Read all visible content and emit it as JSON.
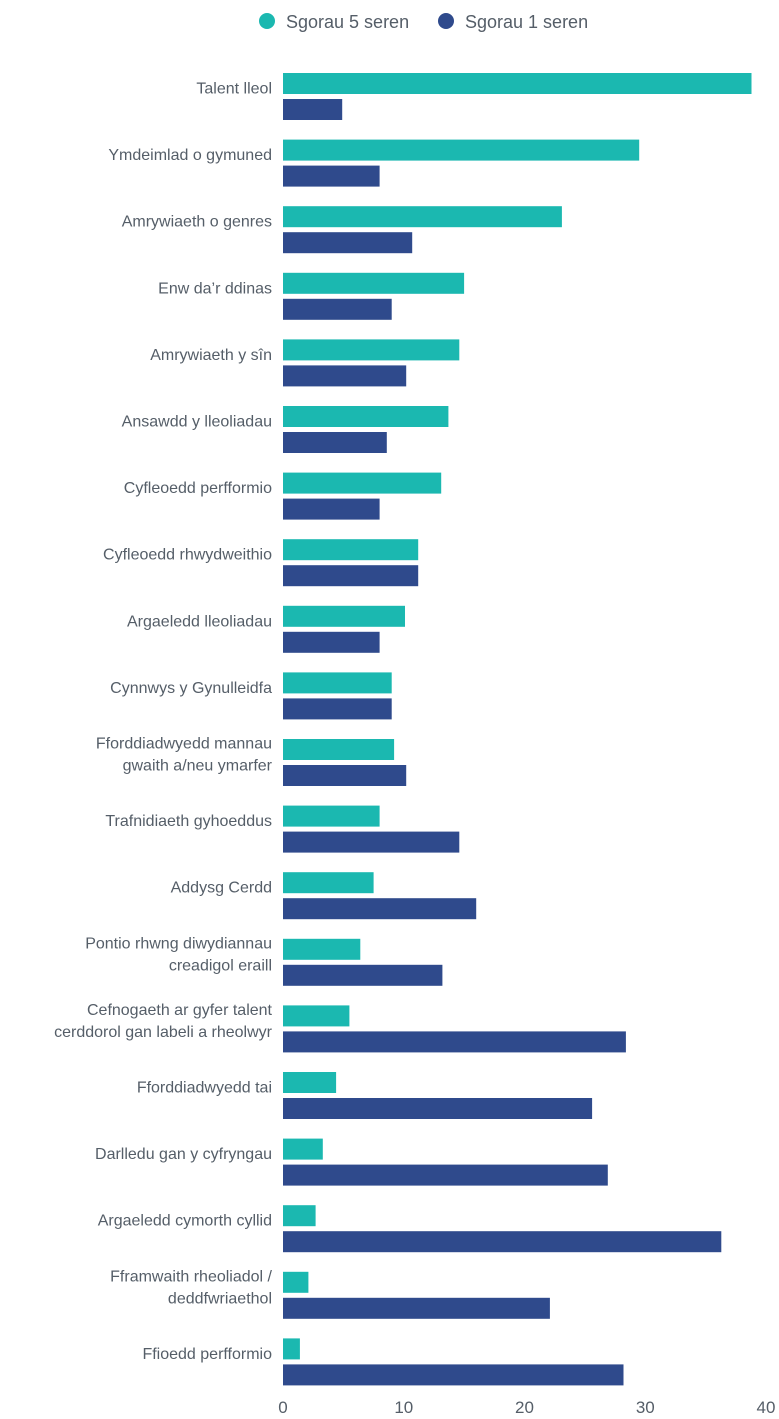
{
  "chart_data": {
    "type": "bar",
    "orientation": "horizontal",
    "categories": [
      [
        "Talent lleol"
      ],
      [
        "Ymdeimlad o gymuned"
      ],
      [
        "Amrywiaeth o genres"
      ],
      [
        "Enw da’r ddinas"
      ],
      [
        "Amrywiaeth y sîn"
      ],
      [
        "Ansawdd y lleoliadau"
      ],
      [
        "Cyfleoedd perfformio"
      ],
      [
        "Cyfleoedd rhwydweithio"
      ],
      [
        "Argaeledd lleoliadau"
      ],
      [
        "Cynnwys y Gynulleidfa"
      ],
      [
        "Fforddiadwyedd mannau",
        "gwaith a/neu ymarfer"
      ],
      [
        "Trafnidiaeth gyhoeddus"
      ],
      [
        "Addysg Cerdd"
      ],
      [
        "Pontio rhwng diwydiannau",
        "creadigol eraill"
      ],
      [
        "Cefnogaeth ar gyfer talent",
        "cerddorol gan labeli a rheolwyr"
      ],
      [
        "Fforddiadwyedd tai"
      ],
      [
        "Darlledu gan y cyfryngau"
      ],
      [
        "Argaeledd cymorth cyllid"
      ],
      [
        "Fframwaith rheoliadol /",
        "deddfwriaethol"
      ],
      [
        "Ffioedd perfformio"
      ]
    ],
    "series": [
      {
        "name": "Sgorau 5 seren",
        "color": "#1bb8b0",
        "values": [
          38.8,
          29.5,
          23.1,
          15.0,
          14.6,
          13.7,
          13.1,
          11.2,
          10.1,
          9.0,
          9.2,
          8.0,
          7.5,
          6.4,
          5.5,
          4.4,
          3.3,
          2.7,
          2.1,
          1.4
        ]
      },
      {
        "name": "Sgorau 1 seren",
        "color": "#2f4a8c",
        "values": [
          4.9,
          8.0,
          10.7,
          9.0,
          10.2,
          8.6,
          8.0,
          11.2,
          8.0,
          9.0,
          10.2,
          14.6,
          16.0,
          13.2,
          28.4,
          25.6,
          26.9,
          36.3,
          22.1,
          28.2
        ]
      }
    ],
    "xlim": [
      0,
      40
    ],
    "xticks": [
      "0",
      "10",
      "20",
      "30",
      "40"
    ],
    "legend_position": "top",
    "grid": false,
    "title": "",
    "xlabel": "",
    "ylabel": ""
  }
}
